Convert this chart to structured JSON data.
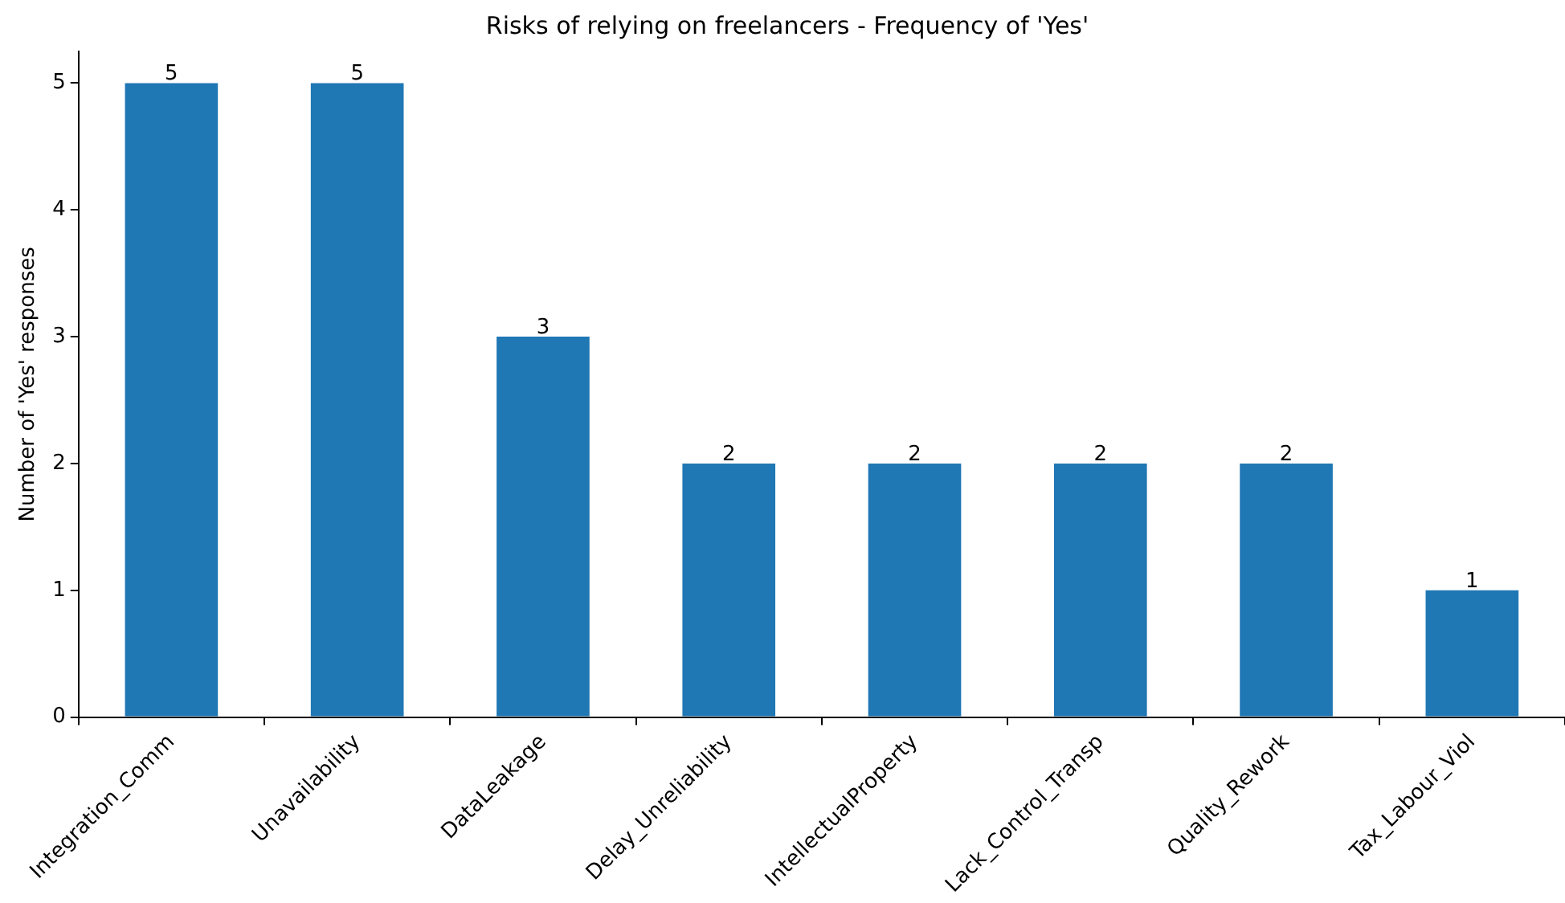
{
  "chart_data": {
    "type": "bar",
    "title": "Risks of relying on freelancers - Frequency of 'Yes'",
    "ylabel": "Number of 'Yes' responses",
    "categories": [
      "Integration_Comm",
      "Unavailability",
      "DataLeakage",
      "Delay_Unreliability",
      "IntellectualProperty",
      "Lack_Control_Transp",
      "Quality_Rework",
      "Tax_Labour_Viol"
    ],
    "values": [
      5,
      5,
      3,
      2,
      2,
      2,
      2,
      1
    ],
    "color": "#1f77b4",
    "ylim": [
      0,
      5.25
    ],
    "yticks": [
      0,
      1,
      2,
      3,
      4,
      5
    ],
    "grid": false,
    "legend": false,
    "data_labels": true
  }
}
